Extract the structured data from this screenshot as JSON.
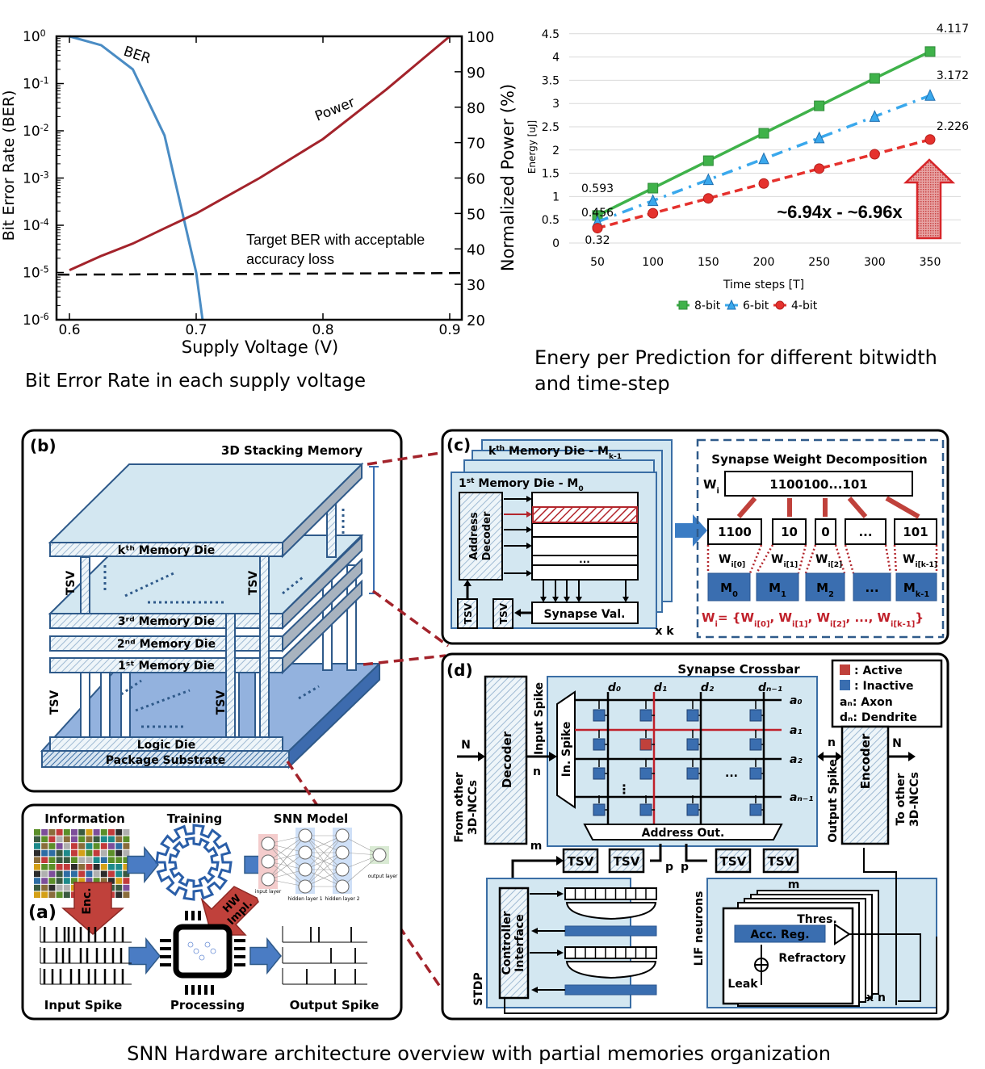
{
  "captions": {
    "ber": "Bit Error Rate in each supply voltage",
    "energy_line1": "Enery per Prediction for different bitwidth",
    "energy_line2": "and time-step",
    "architecture": "SNN Hardware architecture overview with partial memories organization"
  },
  "chart_data": [
    {
      "type": "line",
      "title": "Bit Error Rate in each supply voltage",
      "xlabel": "Supply Voltage (V)",
      "ylabel": "Bit Error Rate (BER)",
      "y2label": "Normalized Power (%)",
      "x_ticks": [
        "0.6",
        "0.7",
        "0.8",
        "0.9"
      ],
      "y_tick_base": "10",
      "y_tick_exponents": [
        "0",
        "-1",
        "-2",
        "-3",
        "-4",
        "-5",
        "-6"
      ],
      "y2_ticks": [
        "100",
        "90",
        "80",
        "70",
        "60",
        "50",
        "40",
        "30",
        "20"
      ],
      "xlim": [
        0.59,
        0.91
      ],
      "ylim": [
        1e-06,
        1
      ],
      "yscale": "log",
      "y2lim": [
        20,
        100
      ],
      "grid": false,
      "series": [
        {
          "name": "BER",
          "axis": "left",
          "color": "#4a8cc4",
          "x": [
            0.6,
            0.625,
            0.65,
            0.675,
            0.7,
            0.705
          ],
          "y": [
            1.0,
            0.65,
            0.2,
            0.008,
            1e-05,
            1e-06
          ]
        },
        {
          "name": "Power",
          "axis": "right",
          "color": "#a3232b",
          "x": [
            0.6,
            0.625,
            0.65,
            0.675,
            0.7,
            0.725,
            0.75,
            0.775,
            0.8,
            0.825,
            0.85,
            0.875,
            0.9
          ],
          "y": [
            34,
            38,
            41.5,
            45.8,
            50,
            55,
            60,
            65.5,
            71,
            78,
            85,
            92.5,
            100
          ]
        }
      ],
      "annotations": {
        "ber_label": "BER",
        "power_label": "Power",
        "threshold_ber": 9e-06,
        "threshold_label": [
          "Target BER with acceptable",
          "accuracy loss"
        ]
      }
    },
    {
      "type": "line",
      "title": "Enery per Prediction for different bitwidth and time-step",
      "xlabel": "Time steps [T]",
      "ylabel": "Energy [uJ]",
      "categories": [
        "50",
        "100",
        "150",
        "200",
        "250",
        "300",
        "350"
      ],
      "x": [
        50,
        100,
        150,
        200,
        250,
        300,
        350
      ],
      "y_ticks": [
        "0",
        "0.5",
        "1",
        "1.5",
        "2",
        "2.5",
        "3",
        "3.5",
        "4",
        "4.5"
      ],
      "ylim": [
        0,
        4.5
      ],
      "grid": true,
      "legend": "bottom",
      "series": [
        {
          "name": "8-bit",
          "marker": "square",
          "color": "#3fb24a",
          "dash": "solid",
          "values": [
            0.593,
            1.18,
            1.77,
            2.36,
            2.95,
            3.54,
            4.117
          ]
        },
        {
          "name": "6-bit",
          "marker": "triangle",
          "color": "#3aa8ec",
          "dash": "dash-dot",
          "values": [
            0.456,
            0.91,
            1.36,
            1.81,
            2.26,
            2.72,
            3.172
          ]
        },
        {
          "name": "4-bit",
          "marker": "circle",
          "color": "#e5312d",
          "dash": "dashed",
          "values": [
            0.32,
            0.64,
            0.96,
            1.28,
            1.6,
            1.91,
            2.226
          ]
        }
      ],
      "data_labels": [
        "4.117",
        "3.172",
        "2.226",
        "0.593",
        "0.456",
        "0.32"
      ],
      "annotation": "~6.94x - ~6.96x"
    }
  ],
  "panel_b": {
    "tag": "(b)",
    "title": "3D Stacking Memory",
    "dies": [
      "kᵗʰ Memory Die",
      "3ʳᵈ Memory Die",
      "2ⁿᵈ Memory Die",
      "1ˢᵗ Memory Die"
    ],
    "logic_die": "Logic Die",
    "substrate": "Package Substrate",
    "tsv": "TSV"
  },
  "panel_c": {
    "tag": "(c)",
    "kth_die": {
      "pre": "k",
      "sup": "th",
      "mid": " Memory Die - M",
      "sub": "k-1"
    },
    "first_die": {
      "pre": "1",
      "sup": "st",
      "mid": " Memory Die - M",
      "sub": "0"
    },
    "address_decoder": [
      "Address",
      "Decoder"
    ],
    "ellipsis": "...",
    "tsv": "TSV",
    "synapse_val": "Synapse Val.",
    "times_k": "x k",
    "decomp_title": "Synapse Weight Decomposition",
    "w_base": "W",
    "w_sub": "i",
    "weight_bits": "1100100...101",
    "segments": [
      "1100",
      "10",
      "0",
      "...",
      "101"
    ],
    "segment_subs": [
      "i[0]",
      "i[1]",
      "i[2]",
      "i[k-1]"
    ],
    "memories": [
      {
        "base": "M",
        "sub": "0"
      },
      {
        "base": "M",
        "sub": "1"
      },
      {
        "base": "M",
        "sub": "2"
      },
      {
        "base": "...",
        "sub": ""
      },
      {
        "base": "M",
        "sub": "k-1"
      }
    ],
    "equation": {
      "lhs": "= {",
      "sep": ", ",
      "dots": "..., ",
      "end": "}"
    }
  },
  "panel_d": {
    "tag": "(d)",
    "crossbar_title": "Synapse Crossbar",
    "legend": {
      "active": ": Active",
      "inactive": ": Inactive",
      "axon": "aₙ: Axon",
      "dendrite": "dₙ: Dendrite"
    },
    "decoder": "Decoder",
    "encoder": "Encoder",
    "input_spike": "Input Spike",
    "in_spike": "In. Spike",
    "output_spike": "Output Spike",
    "from_other": [
      "From other",
      "3D-NCCs"
    ],
    "to_other": [
      "To other",
      "3D-NCCs"
    ],
    "dendrites": [
      "d₀",
      "d₁",
      "d₂",
      "dₙ₋₁"
    ],
    "axons": [
      "a₀",
      "a₁",
      "a₂",
      "aₙ₋₁"
    ],
    "address_out": "Address Out.",
    "tsv": "TSV",
    "bus_labels": {
      "N": "N",
      "n": "n",
      "m": "m",
      "p": "p"
    },
    "stdp": "STDP",
    "controller": [
      "Controller",
      "Interface"
    ],
    "lif": "LIF neurons",
    "thres": "Thres.",
    "acc_reg": "Acc. Reg.",
    "refractory": "Refractory",
    "leak": "Leak",
    "times_n": "x n",
    "ellipsis": "...",
    "vdots": "⋮"
  },
  "panel_a": {
    "tag": "(a)",
    "information": "Information",
    "training": "Training",
    "snn_model": "SNN Model",
    "input_spike": "Input Spike",
    "processing": "Processing",
    "output_spike": "Output Spike",
    "enc": "Enc.",
    "hw_impl": [
      "HW",
      "Impl."
    ],
    "layers": [
      "input layer",
      "hidden layer 1",
      "hidden layer 2",
      "output layer"
    ]
  },
  "colors": {
    "blue": "#3a6eb0",
    "light_blue": "#d3e7f1",
    "red": "#a3232b",
    "dark": "#2f5a8a"
  }
}
